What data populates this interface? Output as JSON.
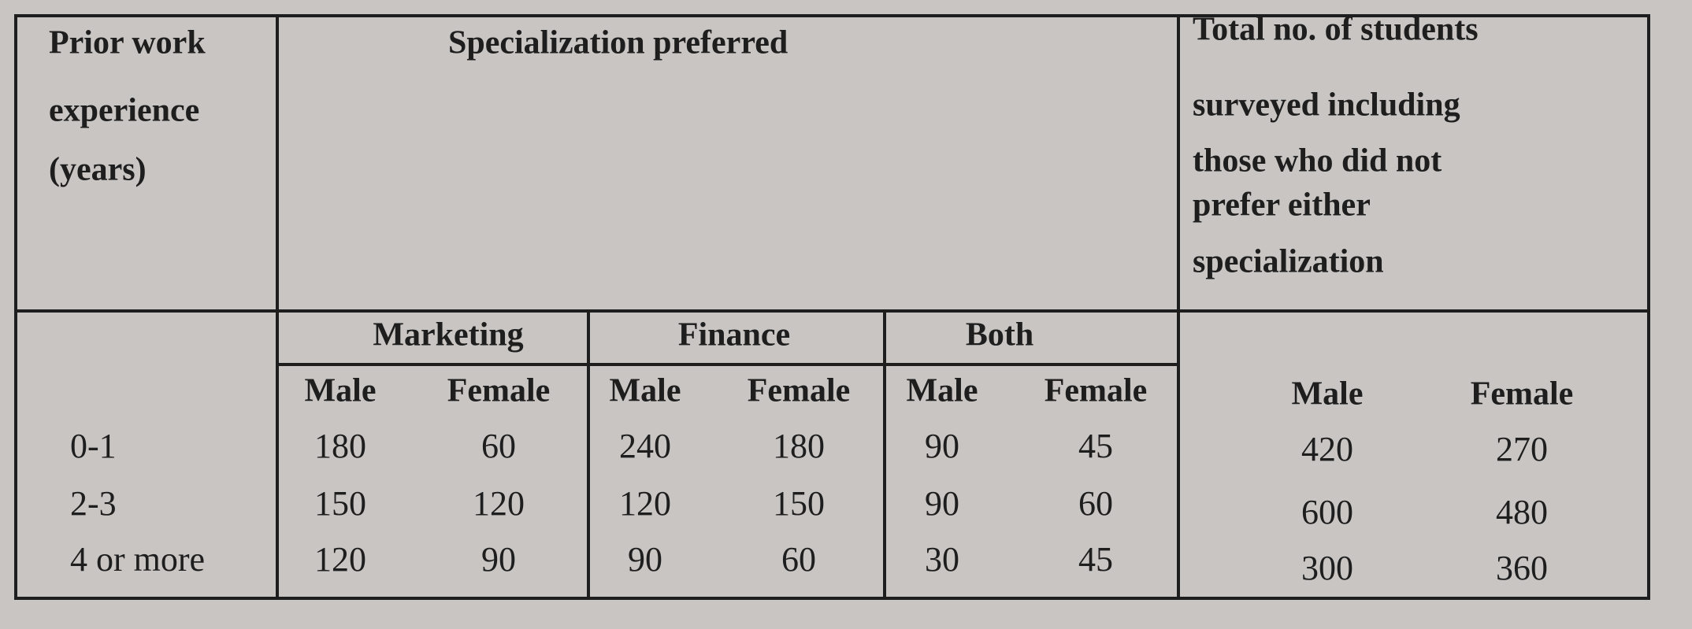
{
  "table": {
    "corner_header": [
      "Prior work",
      "experience",
      "(years)"
    ],
    "spec_header": "Specialization preferred",
    "total_header": [
      "Total no. of students",
      "surveyed including",
      "those who did not",
      "prefer either",
      "specialization"
    ],
    "groups": [
      "Marketing",
      "Finance",
      "Both"
    ],
    "spec_subheaders": [
      "Male",
      "Female",
      "Male",
      "Female",
      "Male",
      "Female"
    ],
    "total_subheaders": [
      "Male",
      "Female"
    ],
    "rows": [
      {
        "label": "0-1",
        "values": [
          180,
          60,
          240,
          180,
          90,
          45
        ],
        "totals": [
          420,
          270
        ]
      },
      {
        "label": "2-3",
        "values": [
          150,
          120,
          120,
          150,
          90,
          60
        ],
        "totals": [
          600,
          480
        ]
      },
      {
        "label": "4 or more",
        "values": [
          120,
          90,
          90,
          60,
          30,
          45
        ],
        "totals": [
          300,
          360
        ]
      }
    ]
  }
}
